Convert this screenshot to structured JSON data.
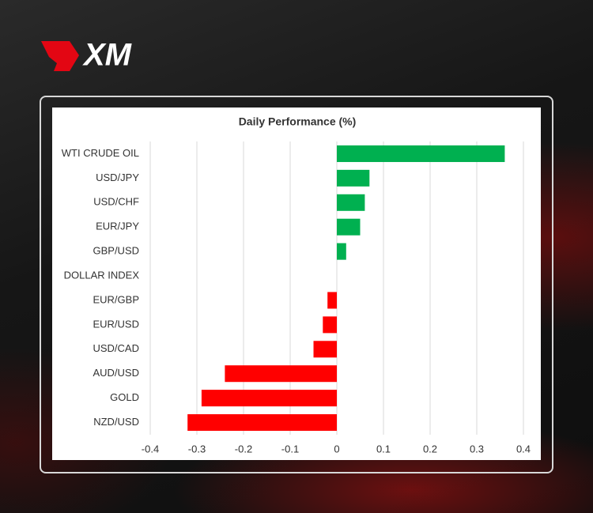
{
  "logo": "XM",
  "chart_data": {
    "type": "barh",
    "title": "Daily Performance (%)",
    "categories": [
      "WTI CRUDE OIL",
      "USD/JPY",
      "USD/CHF",
      "EUR/JPY",
      "GBP/USD",
      "DOLLAR INDEX",
      "EUR/GBP",
      "EUR/USD",
      "USD/CAD",
      "AUD/USD",
      "GOLD",
      "NZD/USD"
    ],
    "values": [
      0.36,
      0.07,
      0.06,
      0.05,
      0.02,
      0,
      -0.02,
      -0.03,
      -0.05,
      -0.24,
      -0.29,
      -0.32
    ],
    "positive_color": "#00b050",
    "negative_color": "#ff0000",
    "xlim": [
      -0.4,
      0.4
    ],
    "xticks": [
      -0.4,
      -0.3,
      -0.2,
      -0.1,
      0,
      0.1,
      0.2,
      0.3,
      0.4
    ],
    "grid": true
  }
}
